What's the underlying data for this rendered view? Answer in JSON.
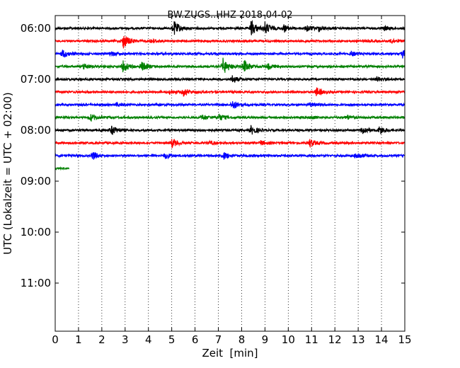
{
  "chart_data": {
    "type": "line",
    "title": "BW.ZUGS..HHZ 2018-04-02",
    "xlabel": "Zeit  [min]",
    "ylabel": "UTC (Lokalzeit = UTC + 02:00)",
    "xlim": [
      0,
      15
    ],
    "x_ticks": [
      "0",
      "1",
      "2",
      "3",
      "4",
      "5",
      "6",
      "7",
      "8",
      "9",
      "10",
      "11",
      "12",
      "13",
      "14",
      "15"
    ],
    "y_ticks": [
      "06:00",
      "07:00",
      "08:00",
      "09:00",
      "10:00",
      "11:00"
    ],
    "grid": "vertical dotted",
    "line_colors": [
      "#000000",
      "#ff0000",
      "#0000ff",
      "#008000"
    ],
    "traces": [
      {
        "start": "06:00",
        "color": "#000000",
        "duration_min": 15,
        "events": [
          [
            5.1,
            1.6
          ],
          [
            8.4,
            1.9
          ],
          [
            9.0,
            1.3
          ],
          [
            9.8,
            0.8
          ],
          [
            10.8,
            0.7
          ],
          [
            11.3,
            0.6
          ],
          [
            14.1,
            0.5
          ]
        ]
      },
      {
        "start": "06:15",
        "color": "#ff0000",
        "duration_min": 15,
        "events": [
          [
            2.9,
            1.8
          ],
          [
            4.1,
            0.5
          ],
          [
            14.4,
            0.6
          ]
        ]
      },
      {
        "start": "06:30",
        "color": "#0000ff",
        "duration_min": 15,
        "events": [
          [
            0.3,
            1.0
          ],
          [
            2.4,
            0.5
          ],
          [
            12.7,
            0.5
          ],
          [
            14.9,
            0.9
          ]
        ]
      },
      {
        "start": "06:45",
        "color": "#008000",
        "duration_min": 15,
        "events": [
          [
            1.2,
            0.8
          ],
          [
            2.9,
            1.3
          ],
          [
            3.7,
            1.1
          ],
          [
            7.2,
            1.9
          ],
          [
            8.1,
            1.5
          ],
          [
            9.1,
            0.7
          ]
        ]
      },
      {
        "start": "07:00",
        "color": "#000000",
        "duration_min": 15,
        "events": [
          [
            7.6,
            0.9
          ],
          [
            13.8,
            0.5
          ]
        ]
      },
      {
        "start": "07:15",
        "color": "#ff0000",
        "duration_min": 15,
        "events": [
          [
            5.5,
            0.9
          ],
          [
            11.2,
            1.0
          ],
          [
            4.9,
            0.5
          ]
        ]
      },
      {
        "start": "07:30",
        "color": "#0000ff",
        "duration_min": 15,
        "events": [
          [
            7.6,
            1.1
          ],
          [
            10.9,
            0.5
          ],
          [
            2.6,
            0.4
          ]
        ]
      },
      {
        "start": "07:45",
        "color": "#008000",
        "duration_min": 15,
        "events": [
          [
            1.5,
            0.9
          ],
          [
            6.3,
            0.6
          ],
          [
            7.0,
            0.8
          ],
          [
            12.5,
            0.6
          ],
          [
            11.0,
            0.4
          ]
        ]
      },
      {
        "start": "08:00",
        "color": "#000000",
        "duration_min": 15,
        "events": [
          [
            2.4,
            1.2
          ],
          [
            8.4,
            1.0
          ],
          [
            13.2,
            0.8
          ],
          [
            13.9,
            1.0
          ]
        ]
      },
      {
        "start": "08:15",
        "color": "#ff0000",
        "duration_min": 15,
        "events": [
          [
            5.0,
            1.0
          ],
          [
            10.9,
            1.0
          ],
          [
            8.8,
            0.5
          ],
          [
            6.6,
            0.4
          ]
        ]
      },
      {
        "start": "08:30",
        "color": "#0000ff",
        "duration_min": 15,
        "events": [
          [
            1.6,
            1.0
          ],
          [
            4.7,
            0.7
          ],
          [
            7.2,
            0.9
          ],
          [
            12.9,
            0.9
          ]
        ]
      },
      {
        "start": "08:45",
        "color": "#008000",
        "duration_min": 0.6,
        "events": []
      }
    ]
  }
}
